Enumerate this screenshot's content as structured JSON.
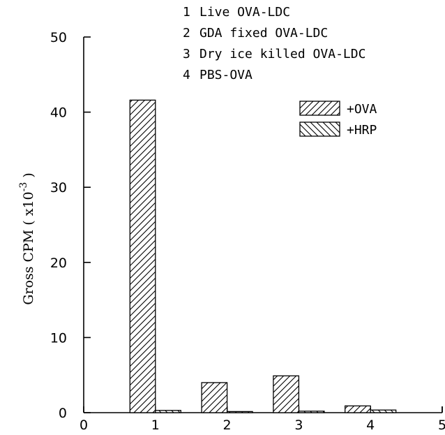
{
  "chart_data": {
    "type": "bar",
    "title": "",
    "xlabel": "",
    "ylabel": "Gross CPM ( x10",
    "ylabel_exponent": "-3",
    "ylabel_suffix": " )",
    "xlim": [
      0,
      5
    ],
    "ylim": [
      0,
      50
    ],
    "xticks": [
      "0",
      "1",
      "2",
      "3",
      "4",
      "5"
    ],
    "yticks": [
      "0",
      "10",
      "20",
      "30",
      "40",
      "50"
    ],
    "grid": false,
    "legend_position": "top-right",
    "group_key": [
      {
        "num": "1",
        "label": "Live OVA-LDC"
      },
      {
        "num": "2",
        "label": "GDA fixed OVA-LDC"
      },
      {
        "num": "3",
        "label": "Dry ice killed OVA-LDC"
      },
      {
        "num": "4",
        "label": "PBS-OVA"
      }
    ],
    "categories": [
      "1",
      "2",
      "3",
      "4"
    ],
    "series": [
      {
        "name": "+OVA",
        "pattern": "hatch-forward",
        "values": [
          41.6,
          4.0,
          4.9,
          0.9
        ]
      },
      {
        "name": "+HRP",
        "pattern": "hatch-back",
        "values": [
          0.3,
          0.15,
          0.2,
          0.35
        ]
      }
    ]
  }
}
